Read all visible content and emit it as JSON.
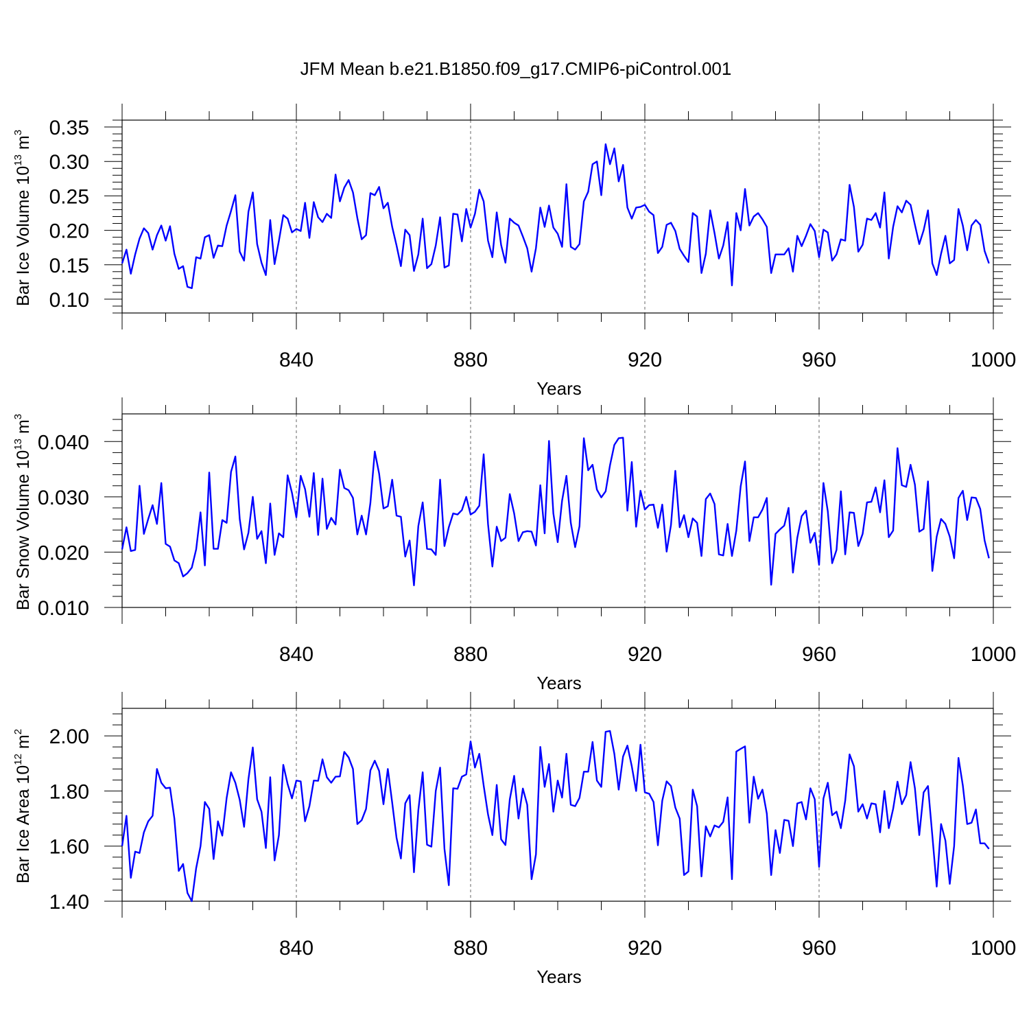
{
  "figure": {
    "title": "JFM Mean b.e21.B1850.f09_g17.CMIP6-piControl.001",
    "line_color": "#0000ff"
  },
  "chart_data": [
    {
      "type": "line",
      "xlabel": "Years",
      "ylabel": {
        "main": "Bar Ice Volume 10",
        "exp": "13",
        "unit": " m",
        "unit_exp": "3"
      },
      "xlim": [
        800,
        1000
      ],
      "ylim": [
        0.08,
        0.36
      ],
      "xticks": [
        840,
        880,
        920,
        960,
        1000
      ],
      "xtick_labels": [
        "840",
        "880",
        "920",
        "960",
        "1000"
      ],
      "yticks": [
        0.1,
        0.15,
        0.2,
        0.25,
        0.3,
        0.35
      ],
      "ytick_labels": [
        "0.10",
        "0.15",
        "0.20",
        "0.25",
        "0.30",
        "0.35"
      ],
      "grid": "vertical dashed at x ticks",
      "x_start": 800,
      "values": [
        0.152,
        0.172,
        0.137,
        0.165,
        0.188,
        0.203,
        0.196,
        0.172,
        0.193,
        0.207,
        0.185,
        0.206,
        0.166,
        0.144,
        0.148,
        0.118,
        0.116,
        0.161,
        0.159,
        0.19,
        0.193,
        0.16,
        0.178,
        0.177,
        0.207,
        0.228,
        0.251,
        0.169,
        0.156,
        0.227,
        0.255,
        0.18,
        0.153,
        0.135,
        0.215,
        0.151,
        0.185,
        0.222,
        0.217,
        0.197,
        0.202,
        0.199,
        0.24,
        0.189,
        0.241,
        0.219,
        0.212,
        0.224,
        0.218,
        0.281,
        0.242,
        0.262,
        0.273,
        0.255,
        0.218,
        0.187,
        0.193,
        0.254,
        0.251,
        0.263,
        0.232,
        0.24,
        0.205,
        0.178,
        0.148,
        0.201,
        0.193,
        0.141,
        0.165,
        0.217,
        0.145,
        0.151,
        0.178,
        0.219,
        0.146,
        0.149,
        0.224,
        0.223,
        0.184,
        0.231,
        0.204,
        0.224,
        0.259,
        0.242,
        0.185,
        0.161,
        0.226,
        0.179,
        0.153,
        0.217,
        0.211,
        0.207,
        0.191,
        0.174,
        0.14,
        0.174,
        0.233,
        0.205,
        0.236,
        0.204,
        0.195,
        0.176,
        0.267,
        0.176,
        0.172,
        0.18,
        0.242,
        0.256,
        0.296,
        0.3,
        0.251,
        0.325,
        0.296,
        0.319,
        0.271,
        0.295,
        0.233,
        0.217,
        0.233,
        0.234,
        0.237,
        0.227,
        0.222,
        0.167,
        0.176,
        0.208,
        0.211,
        0.199,
        0.173,
        0.163,
        0.154,
        0.225,
        0.22,
        0.138,
        0.166,
        0.229,
        0.196,
        0.159,
        0.178,
        0.212,
        0.12,
        0.225,
        0.2,
        0.26,
        0.207,
        0.22,
        0.225,
        0.216,
        0.205,
        0.138,
        0.165,
        0.165,
        0.165,
        0.174,
        0.14,
        0.192,
        0.177,
        0.192,
        0.209,
        0.199,
        0.161,
        0.201,
        0.197,
        0.156,
        0.165,
        0.187,
        0.185,
        0.266,
        0.234,
        0.169,
        0.179,
        0.217,
        0.215,
        0.225,
        0.204,
        0.255,
        0.159,
        0.205,
        0.235,
        0.226,
        0.243,
        0.237,
        0.208,
        0.18,
        0.2,
        0.229,
        0.152,
        0.135,
        0.166,
        0.192,
        0.152,
        0.157,
        0.231,
        0.207,
        0.171,
        0.207,
        0.215,
        0.208,
        0.17,
        0.152
      ]
    },
    {
      "type": "line",
      "xlabel": "Years",
      "ylabel": {
        "main": "Bar Snow Volume 10",
        "exp": "13",
        "unit": " m",
        "unit_exp": "3"
      },
      "xlim": [
        800,
        1000
      ],
      "ylim": [
        0.01,
        0.045
      ],
      "xticks": [
        840,
        880,
        920,
        960,
        1000
      ],
      "xtick_labels": [
        "840",
        "880",
        "920",
        "960",
        "1000"
      ],
      "yticks": [
        0.01,
        0.02,
        0.03,
        0.04
      ],
      "ytick_labels": [
        "0.010",
        "0.020",
        "0.030",
        "0.040"
      ],
      "grid": "vertical dashed at x ticks",
      "x_start": 800,
      "values": [
        0.0205,
        0.0245,
        0.0202,
        0.0204,
        0.032,
        0.0233,
        0.026,
        0.0285,
        0.0251,
        0.0325,
        0.0215,
        0.021,
        0.0185,
        0.018,
        0.0156,
        0.0162,
        0.0172,
        0.0205,
        0.0272,
        0.0176,
        0.0344,
        0.0206,
        0.0206,
        0.0258,
        0.0253,
        0.0345,
        0.0373,
        0.026,
        0.0205,
        0.0235,
        0.03,
        0.0224,
        0.0238,
        0.018,
        0.0288,
        0.0195,
        0.0234,
        0.0227,
        0.0339,
        0.0307,
        0.0263,
        0.0338,
        0.0314,
        0.0264,
        0.0343,
        0.0231,
        0.0333,
        0.0242,
        0.0262,
        0.025,
        0.0349,
        0.0316,
        0.0312,
        0.0298,
        0.0232,
        0.0266,
        0.0232,
        0.0289,
        0.0382,
        0.0342,
        0.0279,
        0.0283,
        0.0331,
        0.0266,
        0.0264,
        0.0192,
        0.0221,
        0.014,
        0.0247,
        0.029,
        0.0206,
        0.0205,
        0.0195,
        0.0331,
        0.0211,
        0.0245,
        0.027,
        0.0268,
        0.0276,
        0.03,
        0.0268,
        0.0273,
        0.0284,
        0.0377,
        0.0251,
        0.0174,
        0.0246,
        0.022,
        0.0226,
        0.0305,
        0.027,
        0.022,
        0.0236,
        0.0238,
        0.0237,
        0.0212,
        0.0321,
        0.0234,
        0.0401,
        0.027,
        0.0218,
        0.0293,
        0.0338,
        0.0253,
        0.0209,
        0.0247,
        0.0406,
        0.0348,
        0.0358,
        0.0313,
        0.0299,
        0.031,
        0.0357,
        0.0394,
        0.0406,
        0.0407,
        0.0275,
        0.0363,
        0.0246,
        0.0311,
        0.0277,
        0.0285,
        0.0286,
        0.0244,
        0.0286,
        0.0201,
        0.0249,
        0.0347,
        0.0245,
        0.0267,
        0.0227,
        0.0261,
        0.0253,
        0.0193,
        0.0296,
        0.0306,
        0.0287,
        0.0196,
        0.0194,
        0.0251,
        0.0193,
        0.0239,
        0.0319,
        0.0364,
        0.022,
        0.0263,
        0.0263,
        0.0277,
        0.0298,
        0.0141,
        0.0233,
        0.0241,
        0.0248,
        0.028,
        0.0163,
        0.0226,
        0.0265,
        0.0275,
        0.0217,
        0.0235,
        0.0177,
        0.0325,
        0.0274,
        0.018,
        0.0204,
        0.031,
        0.0196,
        0.0272,
        0.0271,
        0.0211,
        0.0233,
        0.029,
        0.0291,
        0.0317,
        0.0272,
        0.033,
        0.0227,
        0.0239,
        0.0388,
        0.0321,
        0.0318,
        0.0358,
        0.0322,
        0.0237,
        0.0242,
        0.0328,
        0.0166,
        0.0228,
        0.026,
        0.0251,
        0.0228,
        0.0189,
        0.0298,
        0.0311,
        0.0258,
        0.0299,
        0.0298,
        0.0278,
        0.0221,
        0.0189
      ]
    },
    {
      "type": "line",
      "xlabel": "Years",
      "ylabel": {
        "main": "Bar Ice Area 10",
        "exp": "12",
        "unit": " m",
        "unit_exp": "2"
      },
      "xlim": [
        800,
        1000
      ],
      "ylim": [
        1.4,
        2.1
      ],
      "xticks": [
        840,
        880,
        920,
        960,
        1000
      ],
      "xtick_labels": [
        "840",
        "880",
        "920",
        "960",
        "1000"
      ],
      "yticks": [
        1.4,
        1.6,
        1.8,
        2.0
      ],
      "ytick_labels": [
        "1.40",
        "1.60",
        "1.80",
        "2.00"
      ],
      "grid": "vertical dashed at x ticks",
      "x_start": 800,
      "values": [
        1.6,
        1.71,
        1.485,
        1.58,
        1.575,
        1.65,
        1.69,
        1.71,
        1.88,
        1.83,
        1.81,
        1.812,
        1.7,
        1.51,
        1.535,
        1.43,
        1.4,
        1.52,
        1.6,
        1.76,
        1.735,
        1.553,
        1.69,
        1.638,
        1.775,
        1.868,
        1.83,
        1.768,
        1.67,
        1.843,
        1.958,
        1.77,
        1.725,
        1.593,
        1.85,
        1.548,
        1.64,
        1.895,
        1.825,
        1.773,
        1.838,
        1.835,
        1.69,
        1.745,
        1.838,
        1.837,
        1.915,
        1.85,
        1.83,
        1.852,
        1.853,
        1.942,
        1.922,
        1.88,
        1.68,
        1.694,
        1.735,
        1.875,
        1.91,
        1.873,
        1.752,
        1.88,
        1.758,
        1.63,
        1.555,
        1.755,
        1.785,
        1.505,
        1.73,
        1.868,
        1.605,
        1.598,
        1.8,
        1.885,
        1.59,
        1.458,
        1.81,
        1.808,
        1.852,
        1.86,
        1.98,
        1.885,
        1.935,
        1.82,
        1.715,
        1.64,
        1.822,
        1.625,
        1.604,
        1.77,
        1.855,
        1.7,
        1.809,
        1.75,
        1.48,
        1.57,
        1.96,
        1.815,
        1.898,
        1.725,
        1.838,
        1.776,
        1.935,
        1.75,
        1.745,
        1.775,
        1.87,
        1.87,
        1.978,
        1.838,
        1.815,
        2.015,
        2.018,
        1.935,
        1.805,
        1.925,
        1.965,
        1.89,
        1.8,
        1.968,
        1.795,
        1.79,
        1.76,
        1.603,
        1.765,
        1.835,
        1.818,
        1.74,
        1.7,
        1.495,
        1.508,
        1.805,
        1.745,
        1.49,
        1.672,
        1.635,
        1.675,
        1.668,
        1.688,
        1.777,
        1.48,
        1.943,
        1.953,
        1.962,
        1.685,
        1.852,
        1.772,
        1.805,
        1.718,
        1.495,
        1.658,
        1.575,
        1.695,
        1.692,
        1.6,
        1.755,
        1.76,
        1.697,
        1.81,
        1.77,
        1.525,
        1.773,
        1.83,
        1.712,
        1.725,
        1.665,
        1.765,
        1.933,
        1.89,
        1.725,
        1.752,
        1.7,
        1.755,
        1.752,
        1.65,
        1.8,
        1.665,
        1.735,
        1.834,
        1.752,
        1.785,
        1.905,
        1.81,
        1.64,
        1.795,
        1.818,
        1.638,
        1.453,
        1.68,
        1.62,
        1.463,
        1.6,
        1.92,
        1.82,
        1.68,
        1.685,
        1.733,
        1.61,
        1.61,
        1.59
      ]
    }
  ]
}
